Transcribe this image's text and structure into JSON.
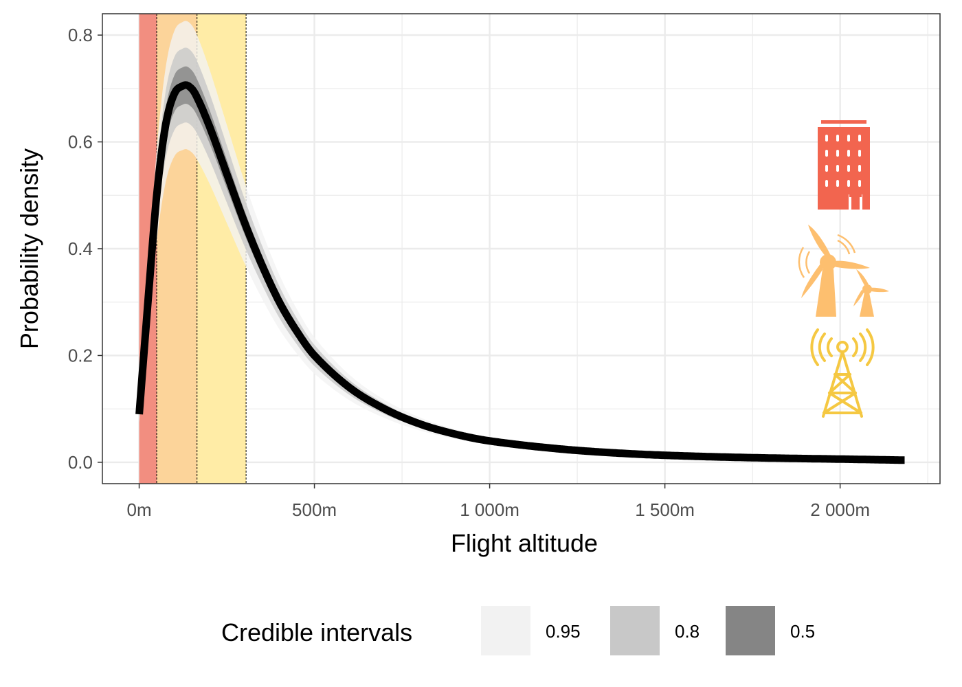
{
  "chart_data": {
    "type": "area",
    "title": "",
    "xlabel": "Flight altitude",
    "ylabel": "Probability density",
    "xlim": [
      -105,
      2285
    ],
    "ylim": [
      -0.04,
      0.84
    ],
    "x_ticks": [
      0,
      500,
      1000,
      1500,
      2000
    ],
    "x_tick_labels": [
      "0m",
      "500m",
      "1 000m",
      "1 500m",
      "2 000m"
    ],
    "y_ticks": [
      0.0,
      0.2,
      0.4,
      0.6,
      0.8
    ],
    "y_tick_labels": [
      "0.0",
      "0.2",
      "0.4",
      "0.6",
      "0.8"
    ],
    "grid": true,
    "legend_position": "bottom",
    "altitude_bands": [
      {
        "from": 0,
        "to": 50,
        "color": "#F28E80"
      },
      {
        "from": 50,
        "to": 165,
        "color": "#FCD49A"
      },
      {
        "from": 165,
        "to": 305,
        "color": "#FFECA6"
      }
    ],
    "band_icons": [
      {
        "icon": "building-icon",
        "color": "#F2654F"
      },
      {
        "icon": "wind-turbine-icon",
        "color": "#FDBF6F"
      },
      {
        "icon": "transmission-tower-icon",
        "color": "#F5C842"
      }
    ],
    "density_curve": {
      "x": [
        0,
        25,
        50,
        75,
        100,
        125,
        140,
        160,
        200,
        250,
        300,
        350,
        400,
        450,
        500,
        600,
        700,
        800,
        900,
        1000,
        1200,
        1400,
        1600,
        1800,
        2000,
        2185
      ],
      "y": [
        0.09,
        0.3,
        0.5,
        0.63,
        0.69,
        0.705,
        0.705,
        0.69,
        0.63,
        0.54,
        0.45,
        0.37,
        0.3,
        0.245,
        0.2,
        0.14,
        0.1,
        0.072,
        0.053,
        0.04,
        0.025,
        0.016,
        0.011,
        0.008,
        0.006,
        0.004
      ]
    },
    "credible_intervals": [
      {
        "level": "0.95",
        "color": "#F2F2F2",
        "half_width_peak": 0.12
      },
      {
        "level": "0.8",
        "color": "#C8C8C8",
        "half_width_peak": 0.07
      },
      {
        "level": "0.5",
        "color": "#858585",
        "half_width_peak": 0.035
      }
    ],
    "legend": {
      "title": "Credible intervals",
      "entries": [
        {
          "label": "0.95",
          "color": "#F2F2F2"
        },
        {
          "label": "0.8",
          "color": "#C8C8C8"
        },
        {
          "label": "0.5",
          "color": "#858585"
        }
      ]
    }
  }
}
